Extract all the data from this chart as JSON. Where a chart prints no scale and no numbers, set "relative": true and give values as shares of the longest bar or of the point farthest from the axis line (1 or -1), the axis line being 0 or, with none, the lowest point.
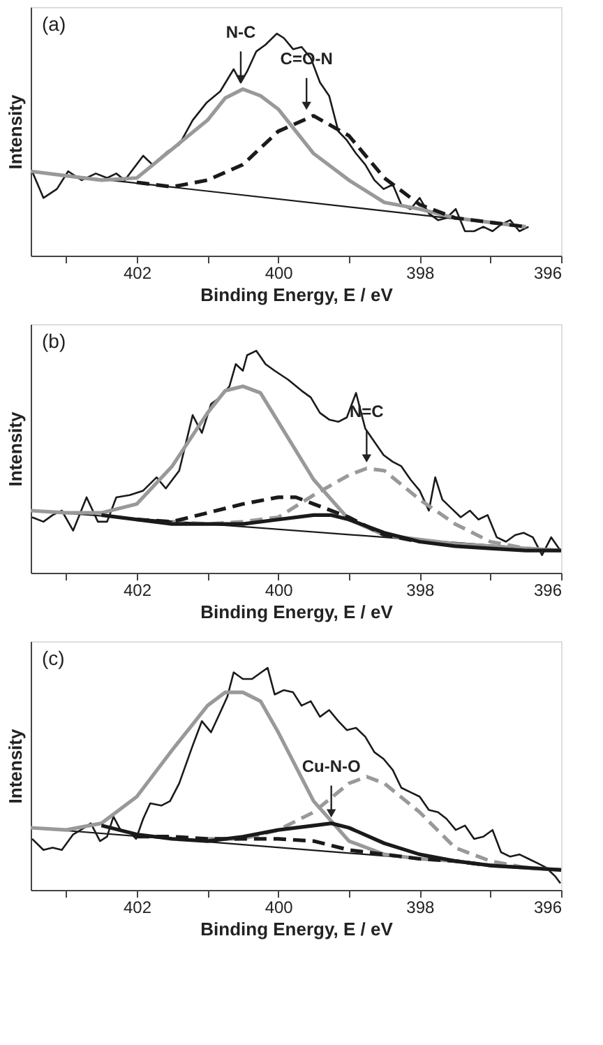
{
  "chart_data": [
    {
      "type": "line",
      "relative": true,
      "xlabel": "Binding Energy, E / eV",
      "ylabel": "Intensity",
      "xlim": [
        403.5,
        396
      ],
      "xticks": [
        {
          "value": 403,
          "label": null
        },
        402,
        {
          "value": 401,
          "label": null
        },
        400,
        {
          "value": 399,
          "label": null
        },
        398,
        {
          "value": 397,
          "label": null
        },
        396
      ],
      "grid": false,
      "marker": "none",
      "annotations": [
        "(a)",
        {
          "text": "N-C",
          "x": 400.53,
          "y": 0.75
        },
        {
          "text": "C=O-N",
          "x": 399.6,
          "y": 0.63
        }
      ],
      "series": [
        {
          "color": "#1a1a1a",
          "line_style": "solid",
          "x": [
            403.48,
            403.32,
            403.13,
            402.97,
            402.78,
            402.58,
            402.42,
            402.29,
            402.17,
            401.91,
            401.78,
            401.56,
            401.4,
            401.21,
            401.01,
            400.82,
            400.63,
            400.53,
            400.44,
            400.31,
            400.18,
            400.02,
            399.92,
            399.79,
            399.67,
            399.54,
            399.41,
            399.28,
            399.15,
            399.03,
            398.9,
            398.77,
            398.64,
            398.51,
            398.38,
            398.26,
            398.13,
            398.0,
            397.87,
            397.74,
            397.62,
            397.49,
            397.36,
            397.23,
            397.1,
            396.97,
            396.85,
            396.72,
            396.59,
            396.46
          ],
          "values": [
            0.38,
            0.26,
            0.3,
            0.38,
            0.34,
            0.37,
            0.35,
            0.37,
            0.34,
            0.45,
            0.41,
            0.47,
            0.5,
            0.61,
            0.69,
            0.74,
            0.84,
            0.78,
            0.83,
            0.92,
            0.95,
            1.0,
            0.98,
            0.93,
            0.94,
            0.89,
            0.78,
            0.72,
            0.56,
            0.52,
            0.46,
            0.41,
            0.34,
            0.3,
            0.32,
            0.23,
            0.21,
            0.26,
            0.19,
            0.16,
            0.17,
            0.21,
            0.11,
            0.11,
            0.13,
            0.11,
            0.14,
            0.16,
            0.11,
            0.13
          ]
        },
        {
          "color": "#1a1a1a",
          "line_style": "solid",
          "x": [
            403.5,
            396.5
          ],
          "values": [
            0.38,
            0.13
          ]
        },
        {
          "color": "#999999",
          "line_style": "solid",
          "x": [
            403.5,
            403,
            402.5,
            402,
            401.5,
            401,
            400.75,
            400.5,
            400.25,
            400,
            399.5,
            399,
            398.5,
            398,
            397.5,
            397,
            396.5
          ],
          "values": [
            0.38,
            0.36,
            0.34,
            0.35,
            0.48,
            0.61,
            0.71,
            0.75,
            0.72,
            0.66,
            0.46,
            0.34,
            0.24,
            0.21,
            0.17,
            0.15,
            0.13
          ]
        },
        {
          "color": "#1a1a1a",
          "line_style": "dashed",
          "x": [
            402,
            401.5,
            401,
            400.5,
            400,
            399.5,
            399,
            398.5,
            398,
            397.5,
            397,
            396.5
          ],
          "values": [
            0.33,
            0.31,
            0.34,
            0.41,
            0.56,
            0.63,
            0.54,
            0.35,
            0.23,
            0.17,
            0.15,
            0.13
          ]
        }
      ]
    },
    {
      "type": "line",
      "relative": true,
      "xlabel": "Binding Energy, E / eV",
      "ylabel": "Intensity",
      "xlim": [
        403.5,
        396
      ],
      "xticks": [
        {
          "value": 403,
          "label": null
        },
        402,
        {
          "value": 401,
          "label": null
        },
        400,
        {
          "value": 399,
          "label": null
        },
        398,
        {
          "value": 397,
          "label": null
        },
        396
      ],
      "grid": false,
      "marker": "none",
      "annotations": [
        "(b)",
        {
          "text": "N=C",
          "x": 398.75,
          "y": 0.47
        }
      ],
      "series": [
        {
          "color": "#1a1a1a",
          "line_style": "solid",
          "x": [
            403.48,
            403.32,
            403.19,
            403.06,
            402.9,
            402.71,
            402.55,
            402.42,
            402.29,
            402.1,
            401.91,
            401.72,
            401.59,
            401.4,
            401.21,
            401.08,
            400.95,
            400.82,
            400.69,
            400.6,
            400.5,
            400.44,
            400.31,
            400.18,
            400.05,
            399.86,
            399.67,
            399.54,
            399.41,
            399.28,
            399.15,
            399.03,
            398.9,
            398.77,
            398.64,
            398.51,
            398.38,
            398.26,
            398.13,
            398.0,
            397.87,
            397.78,
            397.68,
            397.55,
            397.42,
            397.29,
            397.17,
            397.04,
            396.91,
            396.78,
            396.65,
            396.53,
            396.4,
            396.27,
            396.14,
            396.01
          ],
          "values": [
            0.25,
            0.23,
            0.26,
            0.28,
            0.19,
            0.34,
            0.23,
            0.23,
            0.34,
            0.35,
            0.37,
            0.43,
            0.38,
            0.46,
            0.71,
            0.63,
            0.76,
            0.79,
            0.84,
            0.94,
            0.91,
            0.98,
            1.0,
            0.94,
            0.91,
            0.87,
            0.82,
            0.79,
            0.72,
            0.69,
            0.68,
            0.7,
            0.81,
            0.65,
            0.59,
            0.53,
            0.5,
            0.48,
            0.42,
            0.37,
            0.28,
            0.43,
            0.33,
            0.29,
            0.25,
            0.28,
            0.24,
            0.26,
            0.16,
            0.14,
            0.17,
            0.18,
            0.16,
            0.08,
            0.16,
            0.1
          ]
        },
        {
          "color": "#1a1a1a",
          "line_style": "solid",
          "x": [
            403.5,
            396
          ],
          "values": [
            0.28,
            0.1
          ]
        },
        {
          "color": "#999999",
          "line_style": "solid",
          "x": [
            403.5,
            403,
            402.5,
            402,
            401.5,
            401,
            400.75,
            400.5,
            400.25,
            400,
            399.5,
            399,
            398.5,
            398,
            397.5,
            397,
            396.5,
            396
          ],
          "values": [
            0.28,
            0.27,
            0.27,
            0.31,
            0.48,
            0.72,
            0.82,
            0.84,
            0.81,
            0.68,
            0.42,
            0.24,
            0.17,
            0.15,
            0.13,
            0.12,
            0.11,
            0.1
          ]
        },
        {
          "color": "#999999",
          "line_style": "dashed",
          "x": [
            401.5,
            401,
            400.5,
            400,
            399.5,
            399,
            398.75,
            398.5,
            398,
            397.5,
            397,
            396.5,
            396
          ],
          "values": [
            0.23,
            0.22,
            0.23,
            0.25,
            0.35,
            0.44,
            0.47,
            0.46,
            0.33,
            0.22,
            0.14,
            0.11,
            0.1
          ]
        },
        {
          "color": "#1a1a1a",
          "line_style": "dashed",
          "x": [
            402,
            401.5,
            401,
            400.5,
            400,
            399.75,
            399.5,
            399,
            398.5,
            398
          ],
          "values": [
            0.24,
            0.23,
            0.27,
            0.31,
            0.34,
            0.34,
            0.31,
            0.25,
            0.17,
            0.14
          ]
        },
        {
          "color": "#1a1a1a",
          "line_style": "solid",
          "x": [
            402.5,
            401.5,
            401,
            400.5,
            400,
            399.5,
            399.25,
            399,
            398.5,
            398,
            397.5,
            397,
            396.5,
            396
          ],
          "values": [
            0.26,
            0.22,
            0.22,
            0.22,
            0.24,
            0.26,
            0.26,
            0.24,
            0.18,
            0.14,
            0.12,
            0.11,
            0.1,
            0.1
          ]
        }
      ]
    },
    {
      "type": "line",
      "relative": true,
      "xlabel": "Binding Energy, E / eV",
      "ylabel": "Intensity",
      "xlim": [
        403.5,
        396
      ],
      "xticks": [
        {
          "value": 403,
          "label": null
        },
        402,
        {
          "value": 401,
          "label": null
        },
        400,
        {
          "value": 399,
          "label": null
        },
        398,
        {
          "value": 397,
          "label": null
        },
        396
      ],
      "grid": false,
      "marker": "none",
      "annotations": [
        "(c)",
        {
          "text": "Cu-N-O",
          "x": 399.25,
          "y": 0.3
        }
      ],
      "series": [
        {
          "color": "#1a1a1a",
          "line_style": "solid",
          "x": [
            403.48,
            403.32,
            403.19,
            403.06,
            402.9,
            402.74,
            402.65,
            402.52,
            402.42,
            402.33,
            402.23,
            402.1,
            402.01,
            401.91,
            401.81,
            401.65,
            401.53,
            401.4,
            401.21,
            401.08,
            400.95,
            400.82,
            400.72,
            400.63,
            400.5,
            400.37,
            400.24,
            400.15,
            400.05,
            399.92,
            399.79,
            399.67,
            399.54,
            399.41,
            399.28,
            399.15,
            399.03,
            398.9,
            398.77,
            398.64,
            398.51,
            398.38,
            398.26,
            398.13,
            398.0,
            397.87,
            397.74,
            397.62,
            397.49,
            397.36,
            397.23,
            397.1,
            396.97,
            396.85,
            396.72,
            396.59,
            396.46,
            396.33,
            396.21,
            396.08,
            396.01
          ],
          "values": [
            0.23,
            0.18,
            0.19,
            0.18,
            0.25,
            0.28,
            0.3,
            0.22,
            0.24,
            0.33,
            0.27,
            0.26,
            0.23,
            0.32,
            0.39,
            0.38,
            0.4,
            0.48,
            0.65,
            0.76,
            0.71,
            0.8,
            0.87,
            0.98,
            0.95,
            0.95,
            0.98,
            1.0,
            0.88,
            0.9,
            0.89,
            0.83,
            0.85,
            0.78,
            0.81,
            0.76,
            0.72,
            0.73,
            0.69,
            0.62,
            0.59,
            0.54,
            0.46,
            0.44,
            0.42,
            0.36,
            0.35,
            0.32,
            0.27,
            0.29,
            0.23,
            0.24,
            0.27,
            0.17,
            0.15,
            0.16,
            0.14,
            0.12,
            0.1,
            0.06,
            0.03
          ]
        },
        {
          "color": "#1a1a1a",
          "line_style": "solid",
          "x": [
            403.5,
            396
          ],
          "values": [
            0.28,
            0.09
          ]
        },
        {
          "color": "#999999",
          "line_style": "solid",
          "x": [
            403.5,
            403,
            402.5,
            402,
            401.5,
            401,
            400.75,
            400.5,
            400.25,
            400,
            399.5,
            399,
            398.5,
            398,
            397.5,
            397,
            396.5,
            396
          ],
          "values": [
            0.28,
            0.27,
            0.3,
            0.42,
            0.63,
            0.83,
            0.89,
            0.89,
            0.85,
            0.71,
            0.4,
            0.22,
            0.16,
            0.14,
            0.13,
            0.11,
            0.1,
            0.09
          ]
        },
        {
          "color": "#999999",
          "line_style": "dashed",
          "x": [
            401,
            400.5,
            400,
            399.5,
            399,
            398.75,
            398.5,
            398,
            397.5,
            397,
            396.5,
            396
          ],
          "values": [
            0.23,
            0.23,
            0.27,
            0.35,
            0.48,
            0.51,
            0.48,
            0.35,
            0.19,
            0.13,
            0.1,
            0.09
          ]
        },
        {
          "color": "#1a1a1a",
          "line_style": "dashed",
          "x": [
            402,
            401.5,
            401,
            400.5,
            400,
            399.5,
            399,
            398.5,
            398,
            397.5,
            397
          ],
          "values": [
            0.24,
            0.24,
            0.23,
            0.23,
            0.23,
            0.22,
            0.18,
            0.16,
            0.14,
            0.13,
            0.11
          ]
        },
        {
          "color": "#1a1a1a",
          "line_style": "solid",
          "x": [
            402.5,
            402,
            401.5,
            401,
            400.5,
            400,
            399.5,
            399.25,
            399,
            398.5,
            398,
            397.5,
            397,
            396.5,
            396
          ],
          "values": [
            0.29,
            0.25,
            0.23,
            0.22,
            0.24,
            0.27,
            0.29,
            0.3,
            0.28,
            0.21,
            0.16,
            0.13,
            0.11,
            0.1,
            0.09
          ]
        }
      ]
    }
  ]
}
